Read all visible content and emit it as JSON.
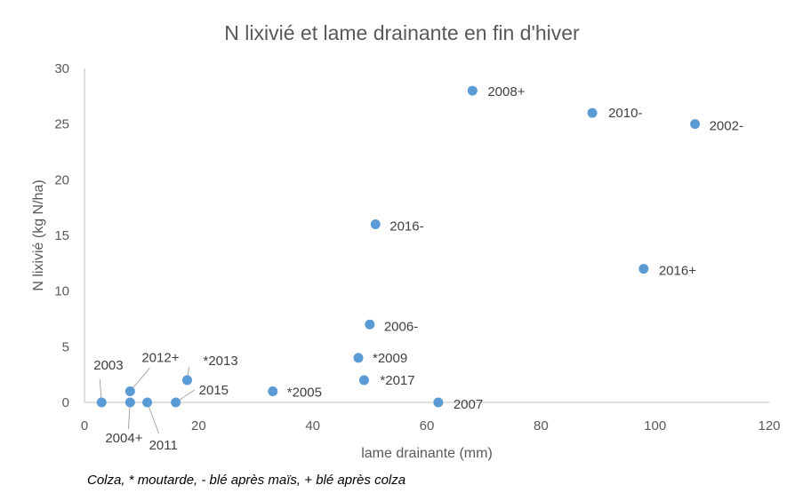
{
  "chart_data": {
    "type": "scatter",
    "title": "N lixivié et lame drainante en fin d'hiver",
    "xlabel": "lame drainante (mm)",
    "ylabel": "N lixivié (kg N/ha)",
    "xlim": [
      0,
      120
    ],
    "ylim": [
      0,
      30
    ],
    "xticks": [
      "0",
      "20",
      "40",
      "60",
      "80",
      "100",
      "120"
    ],
    "yticks": [
      "0",
      "5",
      "10",
      "15",
      "20",
      "25",
      "30"
    ],
    "grid": false,
    "legend": "none",
    "marker_color": "#5B9BD5",
    "points": [
      {
        "x": 3,
        "y": 0,
        "label": "2003"
      },
      {
        "x": 8,
        "y": 0,
        "label": "2004+"
      },
      {
        "x": 11,
        "y": 0,
        "label": "2011"
      },
      {
        "x": 8,
        "y": 1,
        "label": "2012+"
      },
      {
        "x": 16,
        "y": 0,
        "label": "2015"
      },
      {
        "x": 18,
        "y": 2,
        "label": "*2013"
      },
      {
        "x": 33,
        "y": 1,
        "label": "*2005"
      },
      {
        "x": 48,
        "y": 4,
        "label": "*2009"
      },
      {
        "x": 49,
        "y": 2,
        "label": "*2017"
      },
      {
        "x": 50,
        "y": 7,
        "label": "2006-"
      },
      {
        "x": 51,
        "y": 16,
        "label": "2016-"
      },
      {
        "x": 62,
        "y": 0,
        "label": "2007"
      },
      {
        "x": 68,
        "y": 28,
        "label": "2008+"
      },
      {
        "x": 89,
        "y": 26,
        "label": "2010-"
      },
      {
        "x": 98,
        "y": 12,
        "label": "2016+"
      },
      {
        "x": 107,
        "y": 25,
        "label": "2002-"
      }
    ]
  },
  "footnote": "Colza, * moutarde, - blé après maïs, + blé après colza"
}
